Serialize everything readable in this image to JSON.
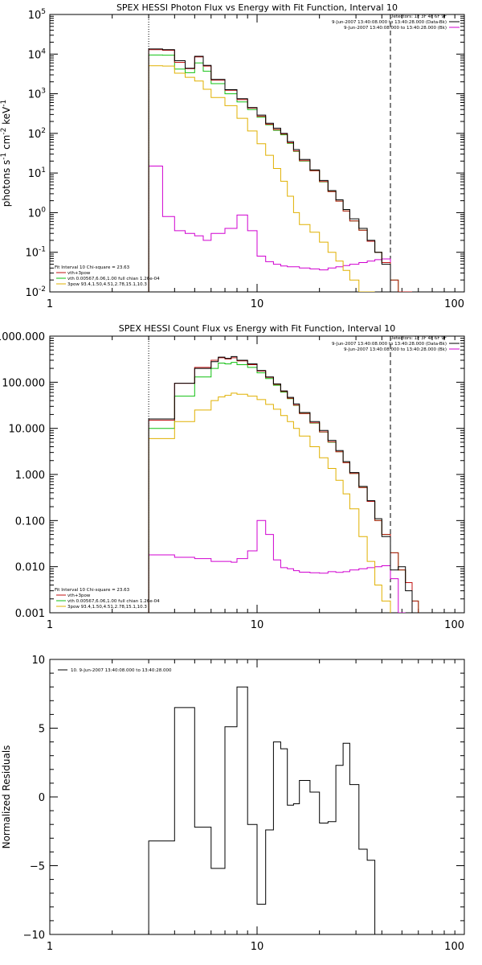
{
  "chart_data": [
    {
      "type": "line",
      "title": "SPEX HESSI Photon Flux vs Energy with Fit Function, Interval 10",
      "ylabel_parts": [
        "photons s",
        "-1",
        " cm",
        "-2",
        " keV",
        "-1"
      ],
      "xscale": "log",
      "yscale": "log",
      "xlim": [
        1,
        100
      ],
      "ylim": [
        0.01,
        100000
      ],
      "xticks": [
        {
          "v": 1,
          "label": "1"
        },
        {
          "v": 10,
          "label": "10"
        },
        {
          "v": 100,
          "label": "100"
        }
      ],
      "yticks": [
        {
          "v": 0.01,
          "base": "10",
          "exp": "-2"
        },
        {
          "v": 0.1,
          "base": "10",
          "exp": "-1"
        },
        {
          "v": 1,
          "base": "10",
          "exp": "0"
        },
        {
          "v": 10,
          "base": "10",
          "exp": "1"
        },
        {
          "v": 100,
          "base": "10",
          "exp": "2"
        },
        {
          "v": 1000,
          "base": "10",
          "exp": "3"
        },
        {
          "v": 10000,
          "base": "10",
          "exp": "4"
        },
        {
          "v": 100000,
          "base": "10",
          "exp": "5"
        }
      ],
      "vlines": [
        {
          "x": 3,
          "style": "dotted"
        },
        {
          "x": 44,
          "style": "dashed"
        }
      ],
      "legend_top": [
        "Detectors: 1F 3F 4F 6F 9F",
        "9-Jun-2007 13:40:08.000 to 13:40:28.000 (Data-Bk)",
        "9-Jun-2007 13:40:08.000 to 13:40:28.000 (Bk)"
      ],
      "legend_bottom": [
        "Fit Interval 10   Chi-square = 23.63",
        "vth+3pow",
        "vth 0.00567,6.06,1.00  full chian 1.26e-04",
        "3pow 93.4,1.50,4.51,2.78,15.1,10.3"
      ],
      "edges": [
        3,
        3.5,
        4,
        4.5,
        5,
        5.5,
        6,
        7,
        8,
        9,
        10,
        11,
        12,
        13,
        14,
        15,
        16,
        18,
        20,
        22,
        24,
        26,
        28,
        31,
        34,
        37,
        40,
        44,
        48,
        52,
        56
      ],
      "series": [
        {
          "name": "Data-Bk",
          "color": "#000000",
          "values": [
            13500,
            13000,
            6800,
            4400,
            8800,
            5200,
            2300,
            1270,
            750,
            450,
            290,
            180,
            135,
            100,
            62,
            39,
            22,
            12,
            6.5,
            3.6,
            2.1,
            1.2,
            0.7,
            0.4,
            0.2,
            0.1,
            0.05,
            0.009
          ]
        },
        {
          "name": "Bk",
          "color": "#d000d0",
          "values": [
            15,
            0.8,
            0.35,
            0.3,
            0.26,
            0.2,
            0.3,
            0.4,
            0.87,
            0.35,
            0.08,
            0.058,
            0.05,
            0.045,
            0.043,
            0.043,
            0.04,
            0.038,
            0.036,
            0.04,
            0.043,
            0.046,
            0.05,
            0.055,
            0.06,
            0.065,
            0.068,
            0.005
          ]
        },
        {
          "name": "vth+3pow",
          "color": "#c01010",
          "values": [
            13000,
            12500,
            6200,
            4300,
            8500,
            5000,
            2200,
            1220,
            710,
            435,
            270,
            170,
            125,
            96,
            58,
            36,
            20.5,
            11.5,
            6.1,
            3.4,
            1.95,
            1.1,
            0.62,
            0.36,
            0.19,
            0.1,
            0.055,
            0.02,
            0.01,
            0.005
          ]
        },
        {
          "name": "vth",
          "color": "#10c010",
          "values": [
            9500,
            9400,
            4200,
            3400,
            6000,
            3700,
            1800,
            1000,
            620,
            400,
            255,
            165,
            120,
            92,
            56,
            35,
            20,
            11.4,
            6,
            3.4,
            1.95,
            1.1,
            0.62,
            0.36,
            0.19,
            0.1,
            0.055,
            0.02,
            0.01,
            0.005
          ]
        },
        {
          "name": "3pow",
          "color": "#e0b000",
          "values": [
            5100,
            5000,
            3300,
            2600,
            2100,
            1300,
            800,
            500,
            240,
            115,
            55,
            28,
            13,
            6.2,
            2.6,
            1,
            0.5,
            0.32,
            0.18,
            0.1,
            0.06,
            0.035,
            0.02,
            0.009,
            0.005
          ]
        }
      ]
    },
    {
      "type": "line",
      "title": "SPEX HESSI Count Flux vs Energy with Fit Function, Interval 10",
      "xscale": "log",
      "yscale": "log",
      "xlim": [
        1,
        100
      ],
      "ylim": [
        0.001,
        1000
      ],
      "xticks": [
        {
          "v": 1,
          "label": "1"
        },
        {
          "v": 10,
          "label": "10"
        },
        {
          "v": 100,
          "label": "100"
        }
      ],
      "yticks": [
        {
          "v": 0.001,
          "label": "0.001"
        },
        {
          "v": 0.01,
          "label": "0.010"
        },
        {
          "v": 0.1,
          "label": "0.100"
        },
        {
          "v": 1,
          "label": "1.000"
        },
        {
          "v": 10,
          "label": "10.000"
        },
        {
          "v": 100,
          "label": "100.000"
        },
        {
          "v": 1000,
          "label": "1000.000"
        }
      ],
      "vlines": [
        {
          "x": 3,
          "style": "dotted"
        },
        {
          "x": 44,
          "style": "dashed"
        }
      ],
      "legend_top": [
        "Detectors: 1F 3F 4F 6F 9F",
        "9-Jun-2007 13:40:08.000 to 13:40:28.000 (Data-Bk)",
        "9-Jun-2007 13:40:08.000 to 13:40:28.000 (Bk)"
      ],
      "legend_bottom": [
        "Fit Interval 10   Chi-square = 23.63",
        "vth+3pow",
        "vth 0.00567,6.06,1.00  full chian 1.26e-04",
        "3pow 93.4,1.50,4.51,2.78,15.1,10.3"
      ],
      "edges": [
        3,
        4,
        5,
        6,
        6.5,
        7,
        7.5,
        8,
        9,
        10,
        11,
        12,
        13,
        14,
        15,
        16,
        18,
        20,
        22,
        24,
        26,
        28,
        31,
        34,
        37,
        40,
        44,
        48,
        52,
        56,
        60
      ],
      "series": [
        {
          "name": "Data-Bk",
          "color": "#000000",
          "values": [
            16,
            95,
            200,
            280,
            350,
            330,
            360,
            300,
            250,
            180,
            130,
            92,
            65,
            47,
            34,
            22,
            14,
            9,
            5.5,
            3.3,
            1.9,
            1.1,
            0.55,
            0.27,
            0.11,
            0.045,
            0.0085,
            0.01,
            0.003,
            0.001
          ]
        },
        {
          "name": "Bk",
          "color": "#d000d0",
          "values": [
            0.018,
            0.016,
            0.015,
            0.013,
            0.013,
            0.013,
            0.0125,
            0.015,
            0.022,
            0.1,
            0.05,
            0.014,
            0.0095,
            0.009,
            0.0082,
            0.0076,
            0.0074,
            0.0072,
            0.0078,
            0.0075,
            0.0078,
            0.0085,
            0.009,
            0.0095,
            0.01,
            0.0105,
            0.0055,
            0.001
          ]
        },
        {
          "name": "vth+3pow",
          "color": "#c01010",
          "values": [
            15,
            95,
            210,
            300,
            340,
            320,
            340,
            290,
            240,
            175,
            128,
            90,
            63,
            45,
            32,
            21,
            13.2,
            8.4,
            5.1,
            3.1,
            1.8,
            1.05,
            0.52,
            0.26,
            0.1,
            0.05,
            0.02,
            0.0085,
            0.0045,
            0.0018
          ]
        },
        {
          "name": "vth",
          "color": "#10c010",
          "values": [
            10,
            50,
            130,
            200,
            260,
            250,
            270,
            240,
            210,
            160,
            120,
            86,
            61,
            44,
            31.5,
            21,
            13,
            8.3,
            5,
            3.1,
            1.8,
            1.05,
            0.52,
            0.26,
            0.1,
            0.05,
            0.02,
            0.0085,
            0.0045,
            0.0018
          ]
        },
        {
          "name": "3pow",
          "color": "#e0b000",
          "values": [
            6,
            14,
            25,
            40,
            48,
            52,
            58,
            55,
            50,
            42,
            33,
            26,
            19,
            14,
            10,
            6.8,
            4,
            2.3,
            1.35,
            0.75,
            0.38,
            0.18,
            0.045,
            0.013,
            0.004,
            0.0018
          ]
        }
      ]
    },
    {
      "type": "line",
      "title": "",
      "ylabel": "Normalized Residuals",
      "xscale": "log",
      "yscale": "linear",
      "xlim": [
        1,
        100
      ],
      "ylim": [
        -10,
        10
      ],
      "xticks": [
        {
          "v": 1,
          "label": "1"
        },
        {
          "v": 10,
          "label": "10"
        },
        {
          "v": 100,
          "label": "100"
        }
      ],
      "yticks": [
        {
          "v": -10,
          "label": "−10"
        },
        {
          "v": -5,
          "label": "−5"
        },
        {
          "v": 0,
          "label": "0"
        },
        {
          "v": 5,
          "label": "5"
        },
        {
          "v": 10,
          "label": "10"
        }
      ],
      "legend_top": [
        "10.  9-Jun-2007 13:40:08.000 to 13:40:28.000"
      ],
      "edges": [
        3,
        4,
        5,
        6,
        7,
        8,
        9,
        10,
        11,
        12,
        13,
        14,
        15,
        16,
        18,
        20,
        22,
        24,
        26,
        28,
        31,
        34,
        37,
        40,
        44
      ],
      "series": [
        {
          "name": "",
          "color": "#000000",
          "values": [
            -3.2,
            6.5,
            -2.2,
            -5.2,
            5.1,
            8.0,
            -2.0,
            -7.8,
            -2.4,
            4.0,
            3.5,
            -0.6,
            -0.5,
            1.2,
            0.35,
            -1.9,
            -1.8,
            2.3,
            3.9,
            0.9,
            -3.8,
            -4.6
          ]
        }
      ],
      "start_from": -10,
      "end_to": -10
    }
  ]
}
